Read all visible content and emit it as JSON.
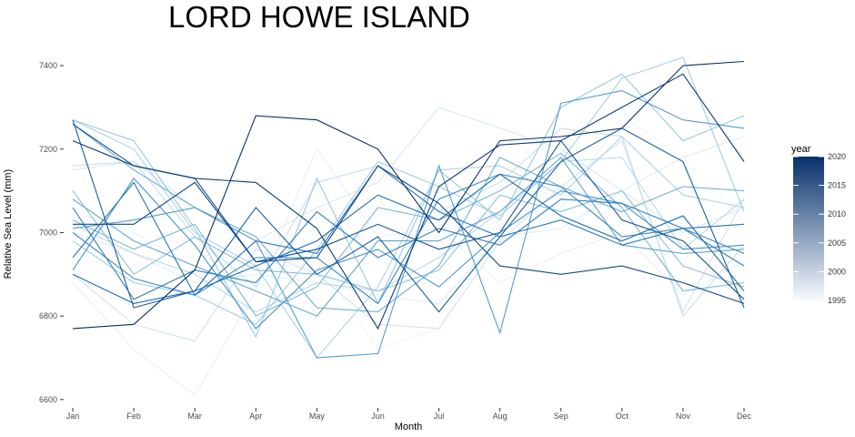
{
  "chart_data": {
    "type": "line",
    "title": "LORD HOWE ISLAND",
    "xlabel": "Month",
    "ylabel": "Relative Sea Level (mm)",
    "categories": [
      "Jan",
      "Feb",
      "Mar",
      "Apr",
      "May",
      "Jun",
      "Jul",
      "Aug",
      "Sep",
      "Oct",
      "Nov",
      "Dec"
    ],
    "ylim": [
      6580,
      7470
    ],
    "yticks": [
      6600,
      6800,
      7000,
      7200,
      7400
    ],
    "grid": false,
    "legend": {
      "title": "year",
      "placement": "right",
      "type": "colorbar",
      "range": [
        1995,
        2020
      ],
      "ticks": [
        1995,
        2000,
        2005,
        2010,
        2015,
        2020
      ],
      "color_low": "#f7fbff",
      "color_high": "#08306b"
    },
    "color_by": "year",
    "series": [
      {
        "year": 1995,
        "values": [
          6900,
          6960,
          6990,
          6940,
          6960,
          6920,
          6900,
          6980,
          7000,
          7020,
          6990,
          7030
        ]
      },
      {
        "year": 1996,
        "values": [
          7050,
          7000,
          6920,
          6960,
          6940,
          6720,
          6770,
          7020,
          7060,
          7280,
          7180,
          7030
        ]
      },
      {
        "year": 1997,
        "values": [
          6880,
          6720,
          6610,
          6860,
          7200,
          6990,
          7010,
          6880,
          6950,
          7000,
          6850,
          6930
        ]
      },
      {
        "year": 1998,
        "values": [
          7000,
          6950,
          6880,
          6900,
          6880,
          6850,
          6830,
          6990,
          7010,
          7100,
          7180,
          7230
        ]
      },
      {
        "year": 1999,
        "values": [
          7150,
          7170,
          7060,
          6980,
          7060,
          7120,
          7300,
          7250,
          7200,
          7100,
          7000,
          7060
        ]
      },
      {
        "year": 2000,
        "values": [
          6900,
          6780,
          6740,
          6960,
          6900,
          6780,
          6770,
          6980,
          7110,
          7220,
          6810,
          7080
        ]
      },
      {
        "year": 2001,
        "values": [
          7160,
          7170,
          6990,
          6870,
          7120,
          7160,
          7050,
          7120,
          7250,
          7230,
          6800,
          6970
        ]
      },
      {
        "year": 2002,
        "values": [
          7020,
          6950,
          6900,
          6810,
          6880,
          6860,
          6940,
          7050,
          7170,
          7180,
          6960,
          7080
        ]
      },
      {
        "year": 2003,
        "values": [
          7270,
          7200,
          7000,
          6920,
          6700,
          6870,
          7150,
          7160,
          7090,
          7230,
          7090,
          7060
        ]
      },
      {
        "year": 2004,
        "values": [
          6980,
          6880,
          6850,
          6780,
          6960,
          7170,
          7110,
          7040,
          7170,
          7370,
          7420,
          7050
        ]
      },
      {
        "year": 2005,
        "values": [
          7270,
          7220,
          7010,
          6750,
          7130,
          6830,
          7150,
          7030,
          7300,
          7380,
          7220,
          7280
        ]
      },
      {
        "year": 2006,
        "values": [
          7100,
          6900,
          6990,
          6910,
          6900,
          6860,
          6910,
          7090,
          7050,
          7100,
          6920,
          6870
        ]
      },
      {
        "year": 2007,
        "values": [
          7030,
          6960,
          7020,
          6800,
          6870,
          7060,
          7030,
          7100,
          7190,
          7060,
          6860,
          6880
        ]
      },
      {
        "year": 2008,
        "values": [
          7260,
          7150,
          7060,
          6990,
          6820,
          6810,
          6920,
          7180,
          7110,
          7050,
          7110,
          7100
        ]
      },
      {
        "year": 2009,
        "values": [
          7080,
          6980,
          6920,
          6860,
          6800,
          6980,
          6980,
          7050,
          7180,
          6970,
          6950,
          6960
        ]
      },
      {
        "year": 2010,
        "values": [
          7010,
          7030,
          7060,
          6980,
          6700,
          6710,
          7160,
          6760,
          7310,
          7340,
          7270,
          7250
        ]
      },
      {
        "year": 2011,
        "values": [
          6910,
          7130,
          6970,
          6770,
          6910,
          6960,
          6870,
          7000,
          7100,
          7070,
          6960,
          6970
        ]
      },
      {
        "year": 2012,
        "values": [
          7000,
          6890,
          6850,
          6940,
          6940,
          6830,
          7080,
          7140,
          7110,
          6990,
          7010,
          6950
        ]
      },
      {
        "year": 2013,
        "values": [
          7060,
          6840,
          6910,
          6880,
          7050,
          6940,
          7010,
          6970,
          7080,
          7070,
          7010,
          6920
        ]
      },
      {
        "year": 2014,
        "values": [
          6940,
          7120,
          6850,
          6980,
          6950,
          7160,
          7050,
          6990,
          7030,
          6970,
          7010,
          7020
        ]
      },
      {
        "year": 2015,
        "values": [
          6900,
          6830,
          6860,
          6920,
          6980,
          7090,
          7030,
          7140,
          7040,
          6980,
          7040,
          6860
        ]
      },
      {
        "year": 2016,
        "values": [
          7270,
          6820,
          6860,
          7060,
          6900,
          6990,
          6810,
          6990,
          7170,
          7250,
          7170,
          6820
        ]
      },
      {
        "year": 2017,
        "values": [
          7260,
          7160,
          7130,
          6930,
          6960,
          7020,
          6960,
          7000,
          7220,
          7030,
          6980,
          6840
        ]
      },
      {
        "year": 2018,
        "values": [
          7020,
          7020,
          7120,
          6930,
          6940,
          7160,
          7070,
          6920,
          6900,
          6920,
          6880,
          6830
        ]
      },
      {
        "year": 2019,
        "values": [
          7220,
          7160,
          7130,
          7120,
          7010,
          6770,
          7110,
          7210,
          7220,
          7300,
          7380,
          7170
        ]
      },
      {
        "year": 2020,
        "values": [
          6770,
          6780,
          6910,
          7280,
          7270,
          7200,
          7000,
          7220,
          7230,
          7250,
          7400,
          7410
        ]
      }
    ]
  }
}
